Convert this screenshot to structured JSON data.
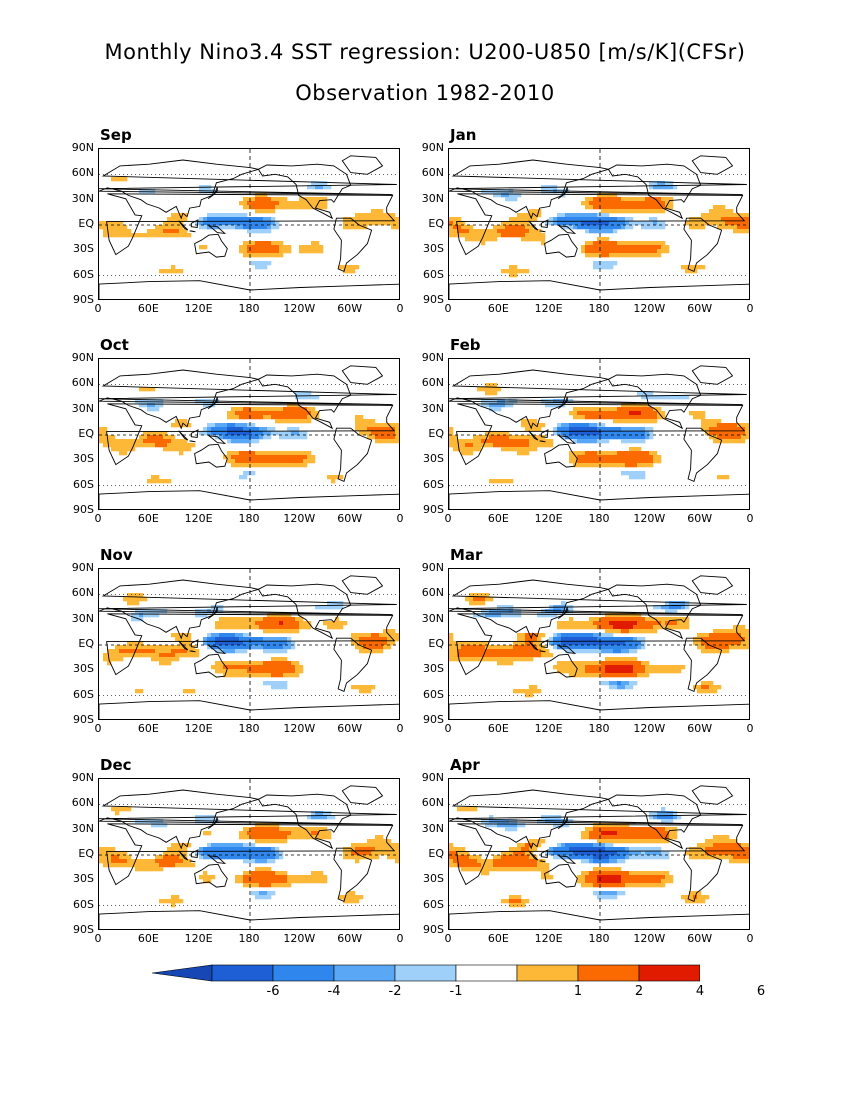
{
  "title_line1": "Monthly Nino3.4 SST regression: U200-U850 [m/s/K](CFSr)",
  "title_line2": "Observation 1982-2010",
  "lat_labels": [
    "90N",
    "60N",
    "30N",
    "EQ",
    "30S",
    "60S",
    "90S"
  ],
  "lon_labels": [
    "0",
    "60E",
    "120E",
    "180",
    "120W",
    "60W",
    "0"
  ],
  "panels": [
    {
      "label": "Sep",
      "intensity": 0.55
    },
    {
      "label": "Jan",
      "intensity": 0.75
    },
    {
      "label": "Oct",
      "intensity": 0.7
    },
    {
      "label": "Feb",
      "intensity": 0.85
    },
    {
      "label": "Nov",
      "intensity": 0.75
    },
    {
      "label": "Mar",
      "intensity": 1.0
    },
    {
      "label": "Dec",
      "intensity": 0.7
    },
    {
      "label": "Apr",
      "intensity": 0.95
    }
  ],
  "colorbar": {
    "labels": [
      "-6",
      "-4",
      "-2",
      "-1",
      "1",
      "2",
      "4",
      "6"
    ],
    "colors": [
      "#1e5fd6",
      "#2f87ee",
      "#5aa8f5",
      "#9ed0fa",
      "#ffffff",
      "#fdb838",
      "#fb6a00",
      "#e11b00",
      "#a50000"
    ],
    "end_low": "#1747b5",
    "end_high": "#8e0000"
  }
}
